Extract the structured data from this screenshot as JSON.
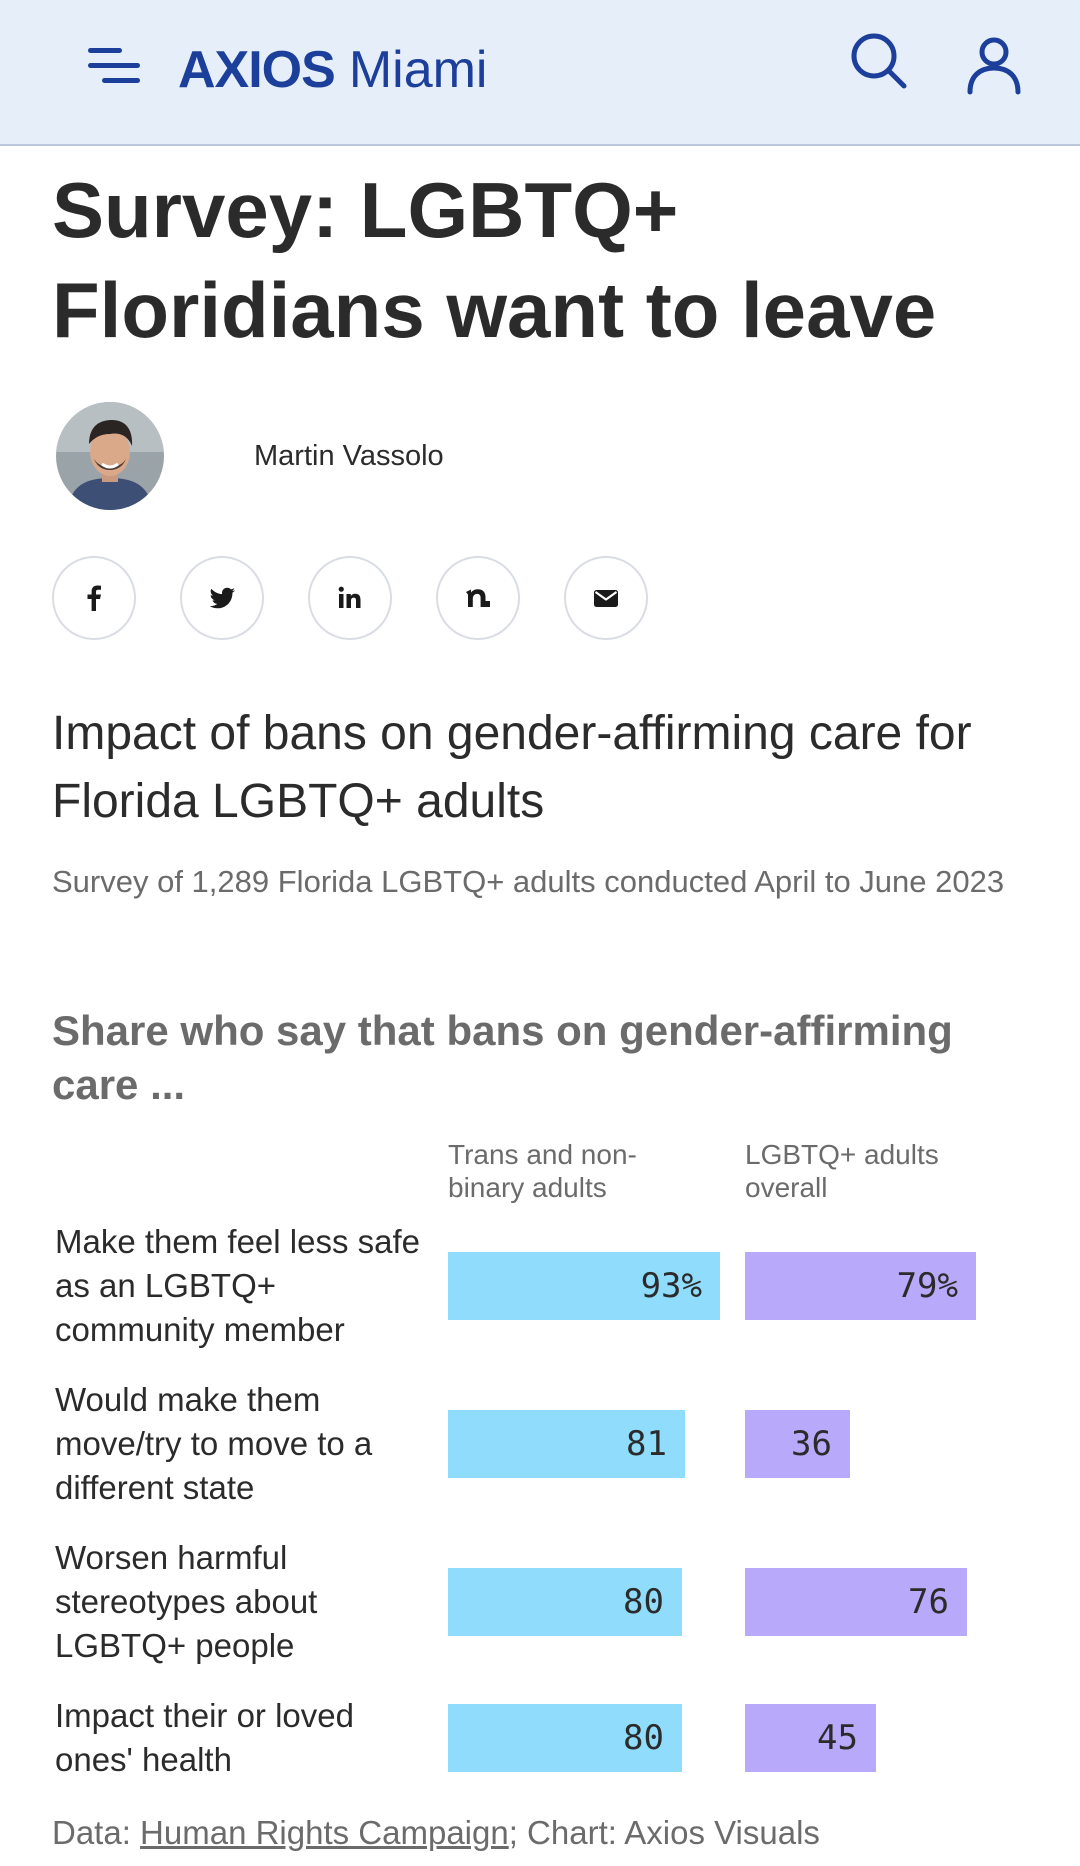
{
  "header": {
    "brand_axios": "AXIOS",
    "brand_city": "Miami",
    "menu_icon": "hamburger-menu-icon",
    "search_icon": "search-icon",
    "user_icon": "user-icon",
    "background": "#e6eff9",
    "brand_color": "#1b3f9a"
  },
  "article": {
    "headline": "Survey: LGBTQ+ Floridians want to leave",
    "author": "Martin Vassolo"
  },
  "share": [
    {
      "name": "facebook-icon"
    },
    {
      "name": "twitter-icon"
    },
    {
      "name": "linkedin-icon"
    },
    {
      "name": "newsletter-icon"
    },
    {
      "name": "email-icon"
    }
  ],
  "chart_data": {
    "type": "bar",
    "title": "Impact of bans on gender-affirming care for Florida LGBTQ+ adults",
    "subtitle": "Survey of 1,289 Florida LGBTQ+ adults conducted April to June 2023",
    "question": "Share who say that bans on gender-affirming care ...",
    "unit": "%",
    "categories": [
      "Make them feel less safe as an LGBTQ+ community member",
      "Would make them move/try to move to a different state",
      "Worsen harmful stereotypes about LGBTQ+ people",
      "Impact their or loved ones' health"
    ],
    "series": [
      {
        "name": "Trans and non-binary adults",
        "color": "#8fdcfd",
        "values": [
          93,
          81,
          80,
          80
        ],
        "labels": [
          "93%",
          "81",
          "80",
          "80"
        ]
      },
      {
        "name": "LGBTQ+ adults overall",
        "color": "#b9a9fb",
        "values": [
          79,
          36,
          76,
          45
        ],
        "labels": [
          "79%",
          "36",
          "76",
          "45"
        ]
      }
    ],
    "ylim": [
      0,
      100
    ],
    "grid": false,
    "legend": "column headers above bars"
  },
  "source": {
    "prefix": "Data: ",
    "link_text": "Human Rights Campaign",
    "suffix": "; Chart: Axios Visuals"
  }
}
